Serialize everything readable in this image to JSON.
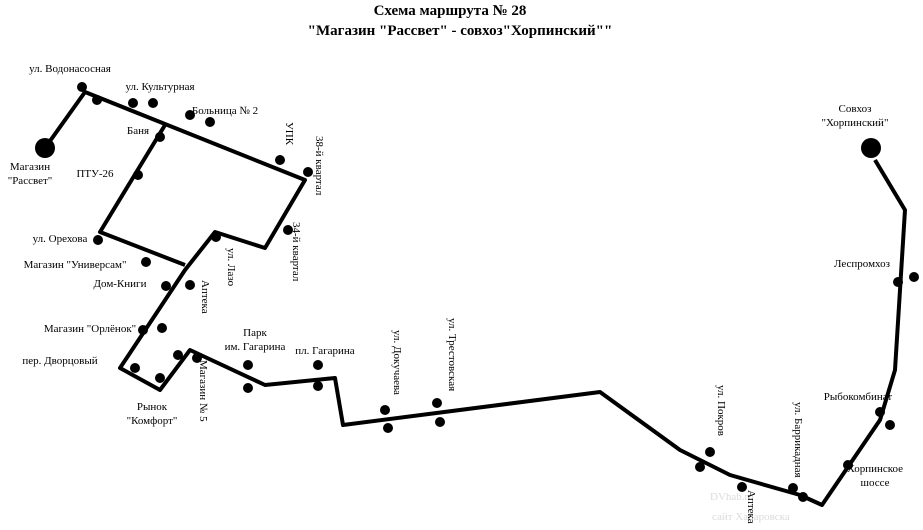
{
  "title": [
    "Схема маршрута № 28",
    "\"Магазин \"Рассвет\" - совхоз\"Хорпинский\"\""
  ],
  "stops": [
    {
      "lines": [
        "Магазин",
        "\"Рассвет\""
      ]
    },
    {
      "lines": [
        "ул. Водонасосная"
      ]
    },
    {
      "lines": [
        "ул. Культурная"
      ]
    },
    {
      "lines": [
        "Баня"
      ]
    },
    {
      "lines": [
        "Больница № 2"
      ]
    },
    {
      "lines": [
        "ПТУ-26"
      ]
    },
    {
      "lines": [
        "УПК"
      ]
    },
    {
      "lines": [
        "38-й квартал"
      ]
    },
    {
      "lines": [
        "ул. Орехова"
      ]
    },
    {
      "lines": [
        "34-й квартал"
      ]
    },
    {
      "lines": [
        "ул. Лазо"
      ]
    },
    {
      "lines": [
        "Магазин \"Универсам\""
      ]
    },
    {
      "lines": [
        "Дом-Книги"
      ]
    },
    {
      "lines": [
        "Аптека"
      ]
    },
    {
      "lines": [
        "Магазин \"Орлёнок\""
      ]
    },
    {
      "lines": [
        "пер. Дворцовый"
      ]
    },
    {
      "lines": [
        "Рынок",
        "\"Комфорт\""
      ]
    },
    {
      "lines": [
        "Магазин № 5"
      ]
    },
    {
      "lines": [
        "Парк",
        "им. Гагарина"
      ]
    },
    {
      "lines": [
        "пл. Гагарина"
      ]
    },
    {
      "lines": [
        "ул. Докучаева"
      ]
    },
    {
      "lines": [
        "ул. Трестовская"
      ]
    },
    {
      "lines": [
        "ул. Покров"
      ]
    },
    {
      "lines": [
        "Аптека"
      ]
    },
    {
      "lines": [
        "ул. Баррикадная"
      ]
    },
    {
      "lines": [
        "Рыбокомбинат"
      ]
    },
    {
      "lines": [
        "Хорпинское",
        "шоссе"
      ]
    },
    {
      "lines": [
        "Леспромхоз"
      ]
    },
    {
      "lines": [
        "Совхоз",
        "\"Хорпинский\""
      ]
    }
  ],
  "watermark": [
    "DVhab.ru",
    "сайт Хабаровска"
  ]
}
